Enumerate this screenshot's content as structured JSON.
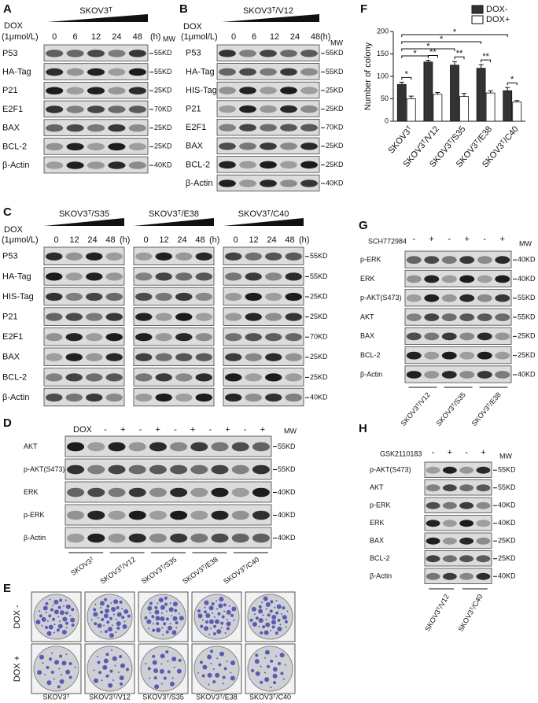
{
  "panels": {
    "a": {
      "label": "A",
      "title": "SKOV3ᵀ",
      "treatment": "DOX",
      "dose": "(1μmol/L)",
      "times": [
        "0",
        "6",
        "12",
        "24",
        "48"
      ],
      "unit": "(h)",
      "mw_header": "MW",
      "rows": [
        {
          "name": "P53",
          "mw": "55KD"
        },
        {
          "name": "HA-Tag",
          "mw": "55KD"
        },
        {
          "name": "P21",
          "mw": "25KD"
        },
        {
          "name": "E2F1",
          "mw": "70KD"
        },
        {
          "name": "BAX",
          "mw": "25KD"
        },
        {
          "name": "BCL-2",
          "mw": "25KD"
        },
        {
          "name": "β-Actin",
          "mw": "40KD"
        }
      ]
    },
    "b": {
      "label": "B",
      "title": "SKOV3ᵀ/V12",
      "treatment": "DOX",
      "dose": "(1μmol/L)",
      "times": [
        "0",
        "6",
        "12",
        "24",
        "48"
      ],
      "unit": "(h)",
      "mw_header": "MW",
      "rows": [
        {
          "name": "P53",
          "mw": "55KD"
        },
        {
          "name": "HA-Tag",
          "mw": "55KD"
        },
        {
          "name": "HIS-Tag",
          "mw": "25KD"
        },
        {
          "name": "P21",
          "mw": "25KD"
        },
        {
          "name": "E2F1",
          "mw": "70KD"
        },
        {
          "name": "BAX",
          "mw": "25KD"
        },
        {
          "name": "BCL-2",
          "mw": "25KD"
        },
        {
          "name": "β-Actin",
          "mw": "40KD"
        }
      ]
    },
    "c": {
      "label": "C",
      "treatment": "DOX",
      "dose": "(1μmol/L)",
      "groups": [
        {
          "title": "SKOV3ᵀ/S35",
          "times": [
            "0",
            "12",
            "24",
            "48"
          ],
          "unit": "(h)"
        },
        {
          "title": "SKOV3ᵀ/E38",
          "times": [
            "0",
            "12",
            "24",
            "48"
          ],
          "unit": "(h)"
        },
        {
          "title": "SKOV3ᵀ/C40",
          "times": [
            "0",
            "12",
            "24",
            "48"
          ],
          "unit": "(h)"
        }
      ],
      "rows": [
        {
          "name": "P53",
          "mw": "55KD"
        },
        {
          "name": "HA-Tag",
          "mw": "55KD"
        },
        {
          "name": "HIS-Tag",
          "mw": "25KD"
        },
        {
          "name": "P21",
          "mw": "25KD"
        },
        {
          "name": "E2F1",
          "mw": "70KD"
        },
        {
          "name": "BAX",
          "mw": "25KD"
        },
        {
          "name": "BCL-2",
          "mw": "25KD"
        },
        {
          "name": "β-Actin",
          "mw": "40KD"
        }
      ]
    },
    "d": {
      "label": "D",
      "treatment": "DOX",
      "conditions": [
        "-",
        "+",
        "-",
        "+",
        "-",
        "+",
        "-",
        "+",
        "-",
        "+"
      ],
      "mw_header": "MW",
      "rows": [
        {
          "name": "AKT",
          "mw": "55KD"
        },
        {
          "name": "p-AKT(S473)",
          "mw": "55KD"
        },
        {
          "name": "ERK",
          "mw": "40KD"
        },
        {
          "name": "p-ERK",
          "mw": "40KD"
        },
        {
          "name": "β-Actin",
          "mw": "40KD"
        }
      ],
      "cell_lines": [
        "SKOV3ᵀ",
        "SKOV3ᵀ/V12",
        "SKOV3ᵀ/S35",
        "SKOV3ᵀ/E38",
        "SKOV3ᵀ/C40"
      ]
    },
    "e": {
      "label": "E",
      "conditions": [
        "DOX -",
        "DOX +"
      ],
      "cell_lines": [
        "SKOV3ᵀ",
        "SKOV3ᵀ/V12",
        "SKOV3ᵀ/S35",
        "SKOV3ᵀ/E38",
        "SKOV3ᵀ/C40"
      ]
    },
    "g": {
      "label": "G",
      "treatment": "SCH772984",
      "conditions": [
        "-",
        "+",
        "-",
        "+",
        "-",
        "+"
      ],
      "mw_header": "MW",
      "rows": [
        {
          "name": "p-ERK",
          "mw": "40KD"
        },
        {
          "name": "ERK",
          "mw": "40KD"
        },
        {
          "name": "p-AKT(S473)",
          "mw": "55KD"
        },
        {
          "name": "AKT",
          "mw": "55KD"
        },
        {
          "name": "BAX",
          "mw": "25KD"
        },
        {
          "name": "BCL-2",
          "mw": "25KD"
        },
        {
          "name": "β-Actin",
          "mw": "40KD"
        }
      ],
      "cell_lines": [
        "SKOV3ᵀ/V12",
        "SKOV3ᵀ/S35",
        "SKOV3ᵀ/E38"
      ]
    },
    "h": {
      "label": "H",
      "treatment": "GSK2110183",
      "conditions": [
        "-",
        "+",
        "-",
        "+"
      ],
      "mw_header": "MW",
      "rows": [
        {
          "name": "p-AKT(S473)",
          "mw": "55KD"
        },
        {
          "name": "AKT",
          "mw": "55KD"
        },
        {
          "name": "p-ERK",
          "mw": "40KD"
        },
        {
          "name": "ERK",
          "mw": "40KD"
        },
        {
          "name": "BAX",
          "mw": "25KD"
        },
        {
          "name": "BCL-2",
          "mw": "25KD"
        },
        {
          "name": "β-Actin",
          "mw": "40KD"
        }
      ],
      "cell_lines": [
        "SKOV3ᵀ/V12",
        "SKOV3ᵀ/C40"
      ]
    }
  },
  "chart_data": {
    "type": "bar",
    "panel_label": "F",
    "y_label": "Number of colony",
    "categories": [
      "SKOV3ᵀ",
      "SKOV3ᵀ/V12",
      "SKOV3ᵀ/S35",
      "SKOV3ᵀ/E38",
      "SKOV3ᵀ/C40"
    ],
    "series": [
      {
        "name": "DOX-",
        "color": "#333333",
        "values": [
          82,
          132,
          125,
          118,
          68
        ],
        "errors": [
          5,
          4,
          8,
          8,
          7
        ]
      },
      {
        "name": "DOX+",
        "color": "#ffffff",
        "values": [
          50,
          60,
          55,
          63,
          43
        ],
        "errors": [
          6,
          4,
          7,
          5,
          3
        ]
      }
    ],
    "ylim": [
      0,
      200
    ],
    "yticks": [
      0,
      50,
      100,
      150,
      200
    ],
    "legend": "upper right",
    "within_group_significance": [
      "*",
      "**",
      "**",
      "**",
      "*"
    ],
    "vs_first_significance": [
      "*",
      "*",
      "*",
      "*"
    ]
  }
}
